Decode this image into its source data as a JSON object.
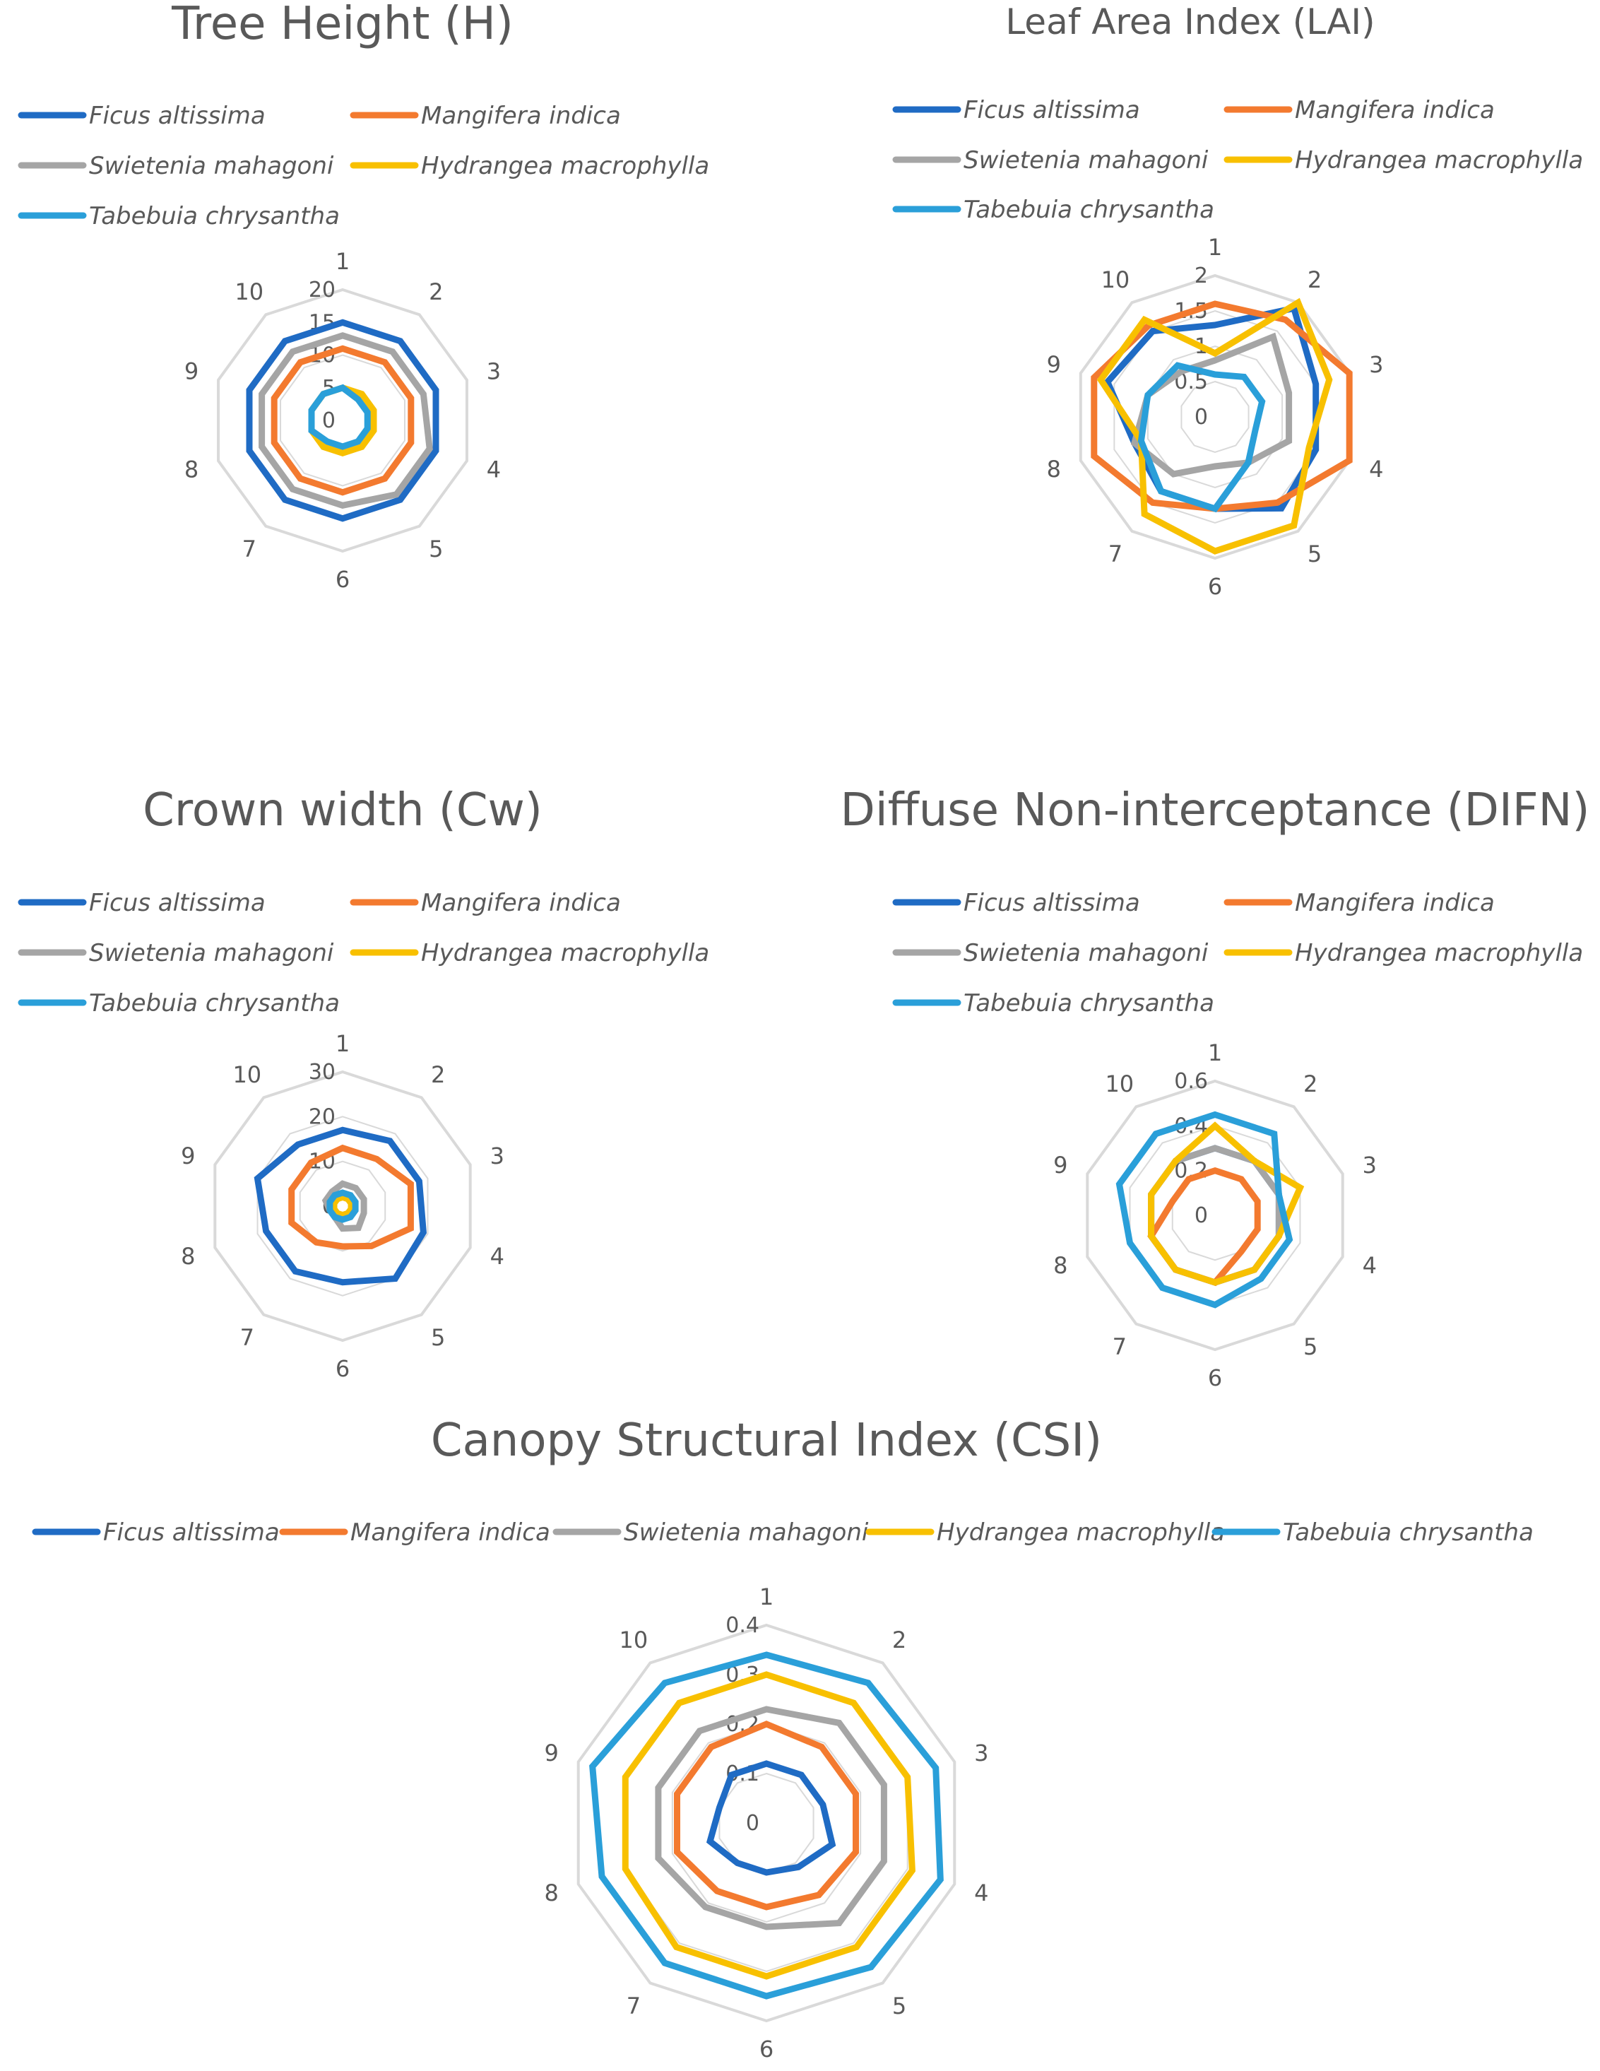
{
  "colors": {
    "grid": "#d9d9d9",
    "text": "#595959",
    "series": [
      "#1f6bc4",
      "#f37a2f",
      "#a5a5a5",
      "#f8c000",
      "#2a9fd9"
    ]
  },
  "chart_data": [
    {
      "type": "radar",
      "title": "Tree Height (H)",
      "categories": [
        "1",
        "2",
        "3",
        "4",
        "5",
        "6",
        "7",
        "8",
        "9",
        "10"
      ],
      "rlim": [
        0,
        20
      ],
      "ticks": [
        "0",
        "5",
        "10",
        "15",
        "20"
      ],
      "legend_position": "top",
      "series": [
        {
          "name": "Ficus altissima",
          "values": [
            15,
            15,
            15,
            15,
            15,
            15,
            15,
            15,
            15,
            15
          ]
        },
        {
          "name": "Mangifera indica",
          "values": [
            11,
            11,
            11,
            11,
            11,
            11,
            11,
            11,
            11,
            11
          ]
        },
        {
          "name": "Swietenia mahagoni",
          "values": [
            13,
            13,
            13,
            14,
            14,
            13,
            13,
            13,
            13,
            13
          ]
        },
        {
          "name": "Hydrangea macrophylla",
          "values": [
            5,
            5,
            5,
            5,
            5,
            5,
            5,
            5,
            5,
            5
          ]
        },
        {
          "name": "Tabebuia chrysantha",
          "values": [
            5,
            4,
            4,
            4,
            4,
            4,
            4,
            5,
            5,
            5
          ]
        }
      ]
    },
    {
      "type": "radar",
      "title": "Leaf Area Index (LAI)",
      "categories": [
        "1",
        "2",
        "3",
        "4",
        "5",
        "6",
        "7",
        "8",
        "9",
        "10"
      ],
      "rlim": [
        0,
        2
      ],
      "ticks": [
        "0",
        "0.5",
        "1",
        "1.5",
        "2"
      ],
      "legend_position": "top",
      "series": [
        {
          "name": "Ficus altissima",
          "values": [
            1.3,
            1.9,
            1.5,
            1.5,
            1.6,
            1.3,
            1.3,
            1.2,
            1.6,
            1.5
          ]
        },
        {
          "name": "Mangifera indica",
          "values": [
            1.6,
            1.7,
            2.0,
            2.0,
            1.5,
            1.3,
            1.5,
            1.8,
            1.8,
            1.6
          ]
        },
        {
          "name": "Swietenia mahagoni",
          "values": [
            0.8,
            1.4,
            1.1,
            1.1,
            0.8,
            0.7,
            1.0,
            1.2,
            1.0,
            0.8
          ]
        },
        {
          "name": "Hydrangea macrophylla",
          "values": [
            0.9,
            2.0,
            1.7,
            1.4,
            1.9,
            1.9,
            1.7,
            1.1,
            1.7,
            1.7
          ]
        },
        {
          "name": "Tabebuia chrysantha",
          "values": [
            0.6,
            0.7,
            0.7,
            0.6,
            0.8,
            1.3,
            1.3,
            1.1,
            1.0,
            0.9
          ]
        }
      ]
    },
    {
      "type": "radar",
      "title": "Crown width (Cw)",
      "categories": [
        "1",
        "2",
        "3",
        "4",
        "5",
        "6",
        "7",
        "8",
        "9",
        "10"
      ],
      "rlim": [
        0,
        30
      ],
      "ticks": [
        "0",
        "10",
        "20",
        "30"
      ],
      "legend_position": "top",
      "series": [
        {
          "name": "Ficus altissima",
          "values": [
            17,
            18,
            18,
            19,
            20,
            17,
            18,
            18,
            20,
            17
          ]
        },
        {
          "name": "Mangifera indica",
          "values": [
            13,
            13,
            16,
            16,
            11,
            9,
            10,
            12,
            12,
            12
          ]
        },
        {
          "name": "Swietenia mahagoni",
          "values": [
            5,
            5,
            5,
            5,
            6,
            5,
            3,
            3,
            4,
            4
          ]
        },
        {
          "name": "Hydrangea macrophylla",
          "values": [
            2,
            2,
            2,
            2,
            2,
            2,
            2,
            2,
            2,
            2
          ]
        },
        {
          "name": "Tabebuia chrysantha",
          "values": [
            3,
            3,
            3,
            3,
            3,
            3,
            3,
            3,
            3,
            3
          ]
        }
      ]
    },
    {
      "type": "radar",
      "title": "Diffuse Non-interceptance (DIFN)",
      "categories": [
        "1",
        "2",
        "3",
        "4",
        "5",
        "6",
        "7",
        "8",
        "9",
        "10"
      ],
      "rlim": [
        0,
        0.6
      ],
      "ticks": [
        "0",
        "0.2",
        "0.4",
        "0.6"
      ],
      "legend_position": "top",
      "series": [
        {
          "name": "Ficus altissima",
          "values": [
            0.3,
            0.3,
            0.3,
            0.3,
            0.3,
            0.3,
            0.3,
            0.3,
            0.3,
            0.3
          ]
        },
        {
          "name": "Mangifera indica",
          "values": [
            0.2,
            0.2,
            0.2,
            0.2,
            0.2,
            0.3,
            0.3,
            0.3,
            0.2,
            0.2
          ]
        },
        {
          "name": "Swietenia mahagoni",
          "values": [
            0.3,
            0.3,
            0.3,
            0.3,
            0.3,
            0.3,
            0.3,
            0.3,
            0.3,
            0.3
          ]
        },
        {
          "name": "Hydrangea macrophylla",
          "values": [
            0.4,
            0.3,
            0.4,
            0.3,
            0.3,
            0.3,
            0.3,
            0.3,
            0.3,
            0.3
          ]
        },
        {
          "name": "Tabebuia chrysantha",
          "values": [
            0.45,
            0.45,
            0.3,
            0.35,
            0.35,
            0.4,
            0.4,
            0.4,
            0.45,
            0.45
          ]
        }
      ]
    },
    {
      "type": "radar",
      "title": "Canopy Structural Index (CSI)",
      "categories": [
        "1",
        "2",
        "3",
        "4",
        "5",
        "6",
        "7",
        "8",
        "9",
        "10"
      ],
      "rlim": [
        0,
        0.4
      ],
      "ticks": [
        "0",
        "0.1",
        "0.2",
        "0.3",
        "0.4"
      ],
      "legend_position": "top",
      "series": [
        {
          "name": "Ficus altissima",
          "values": [
            0.12,
            0.12,
            0.12,
            0.14,
            0.11,
            0.1,
            0.1,
            0.12,
            0.1,
            0.12
          ]
        },
        {
          "name": "Mangifera indica",
          "values": [
            0.2,
            0.19,
            0.19,
            0.19,
            0.18,
            0.17,
            0.17,
            0.19,
            0.19,
            0.19
          ]
        },
        {
          "name": "Swietenia mahagoni",
          "values": [
            0.23,
            0.25,
            0.25,
            0.25,
            0.25,
            0.21,
            0.21,
            0.23,
            0.23,
            0.23
          ]
        },
        {
          "name": "Hydrangea macrophylla",
          "values": [
            0.3,
            0.3,
            0.3,
            0.31,
            0.31,
            0.31,
            0.31,
            0.3,
            0.3,
            0.3
          ]
        },
        {
          "name": "Tabebuia chrysantha",
          "values": [
            0.34,
            0.35,
            0.36,
            0.37,
            0.36,
            0.35,
            0.35,
            0.35,
            0.37,
            0.35
          ]
        }
      ]
    }
  ]
}
